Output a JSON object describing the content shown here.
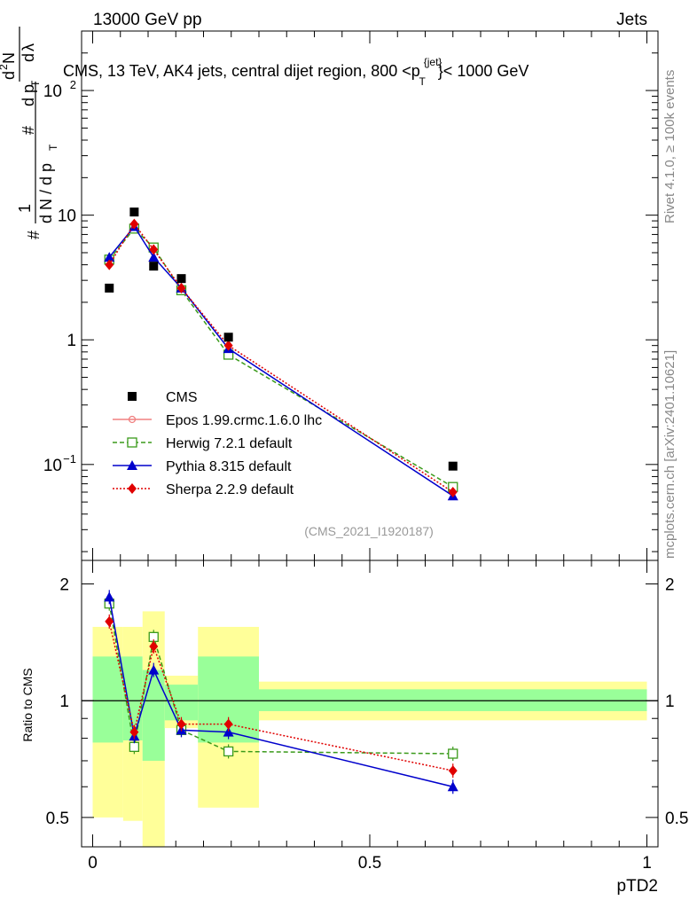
{
  "header": {
    "left": "13000 GeV pp",
    "right": "Jets"
  },
  "side": {
    "rivet": "Rivet 4.1.0, ≥ 100k events",
    "mcplots": "mcplots.cern.ch [arXiv:2401.10621]"
  },
  "colors": {
    "cms": "#000000",
    "epos": "#f08080",
    "herwig": "#3a9a1a",
    "pythia": "#0000cc",
    "sherpa": "#e00000",
    "band_inner": "#99ff99",
    "band_outer": "#ffff99"
  },
  "chart_data": {
    "type": "line",
    "title": "CMS, 13 TeV, AK4 jets, central dijet region, 800 <p_T^{jet}> < 1000 GeV",
    "title_parts": {
      "before": "CMS, 13 TeV, AK4 jets, central dijet region, 800 <p",
      "sup": "{jet}",
      "sub": "T",
      "after": "}< 1000 GeV"
    },
    "xlabel": "pTD2",
    "ylabel_parts": [
      "#",
      "1",
      "d N / d p",
      "T",
      "#",
      "d",
      "2",
      "N",
      "d p",
      "T",
      "d",
      "λ"
    ],
    "watermark": "(CMS_2021_I1920187)",
    "ratio_ylabel": "Ratio to CMS",
    "xlim": [
      -0.02,
      1.02
    ],
    "ylim": [
      0.017,
      300
    ],
    "ratio_ylim": [
      0.42,
      2.3
    ],
    "x_ticks": [
      0,
      0.5,
      1
    ],
    "x_tick_labels": [
      "0",
      "0.5",
      "1"
    ],
    "y_ticks": [
      0.1,
      1,
      10,
      100
    ],
    "y_tick_labels": [
      {
        "base": "10",
        "exp": "−1"
      },
      {
        "base": "1",
        "exp": ""
      },
      {
        "base": "10",
        "exp": ""
      },
      {
        "base": "10",
        "exp": "2"
      }
    ],
    "ratio_ticks": [
      0.5,
      1,
      2
    ],
    "ratio_tick_labels": [
      "0.5",
      "1",
      "2"
    ],
    "bins": [
      [
        0,
        0.055
      ],
      [
        0.055,
        0.09
      ],
      [
        0.09,
        0.13
      ],
      [
        0.13,
        0.19
      ],
      [
        0.19,
        0.3
      ],
      [
        0.3,
        1.0
      ]
    ],
    "cms": {
      "name": "CMS",
      "x": [
        0.03,
        0.075,
        0.11,
        0.16,
        0.245,
        0.65
      ],
      "y": [
        2.6,
        10.6,
        3.9,
        3.1,
        1.05,
        0.097
      ]
    },
    "band_inner": [
      [
        0.78,
        1.3
      ],
      [
        0.79,
        1.3
      ],
      [
        0.7,
        1.2
      ],
      [
        0.89,
        1.1
      ],
      [
        0.78,
        1.3
      ],
      [
        0.94,
        1.07
      ]
    ],
    "band_outer": [
      [
        0.5,
        1.55
      ],
      [
        0.49,
        1.55
      ],
      [
        0.3,
        1.7
      ],
      [
        0.85,
        1.16
      ],
      [
        0.53,
        1.55
      ],
      [
        0.89,
        1.12
      ]
    ],
    "series": [
      {
        "name": "Epos 1.99.crmc.1.6.0 lhc",
        "key": "epos",
        "x": [],
        "y": [],
        "ratio": [],
        "marker": "circle-open",
        "dash": "solid"
      },
      {
        "name": "Herwig 7.2.1 default",
        "key": "herwig",
        "x": [
          0.03,
          0.075,
          0.11,
          0.16,
          0.245,
          0.65
        ],
        "y": [
          4.4,
          7.8,
          5.5,
          2.5,
          0.76,
          0.066
        ],
        "ratio": [
          1.78,
          0.76,
          1.46,
          0.84,
          0.74,
          0.73
        ],
        "marker": "square-open",
        "dash": "5,3"
      },
      {
        "name": "Pythia 8.315 default",
        "key": "pythia",
        "x": [
          0.03,
          0.075,
          0.11,
          0.16,
          0.245,
          0.65
        ],
        "y": [
          4.6,
          8.1,
          4.6,
          2.6,
          0.85,
          0.056
        ],
        "ratio": [
          1.85,
          0.81,
          1.2,
          0.84,
          0.83,
          0.6
        ],
        "marker": "triangle",
        "dash": "solid"
      },
      {
        "name": "Sherpa 2.2.9 default",
        "key": "sherpa",
        "x": [
          0.03,
          0.075,
          0.11,
          0.16,
          0.245,
          0.65
        ],
        "y": [
          4.0,
          8.5,
          5.3,
          2.6,
          0.9,
          0.06
        ],
        "ratio": [
          1.6,
          0.83,
          1.38,
          0.87,
          0.87,
          0.66
        ],
        "marker": "diamond",
        "dash": "2,2"
      }
    ]
  }
}
